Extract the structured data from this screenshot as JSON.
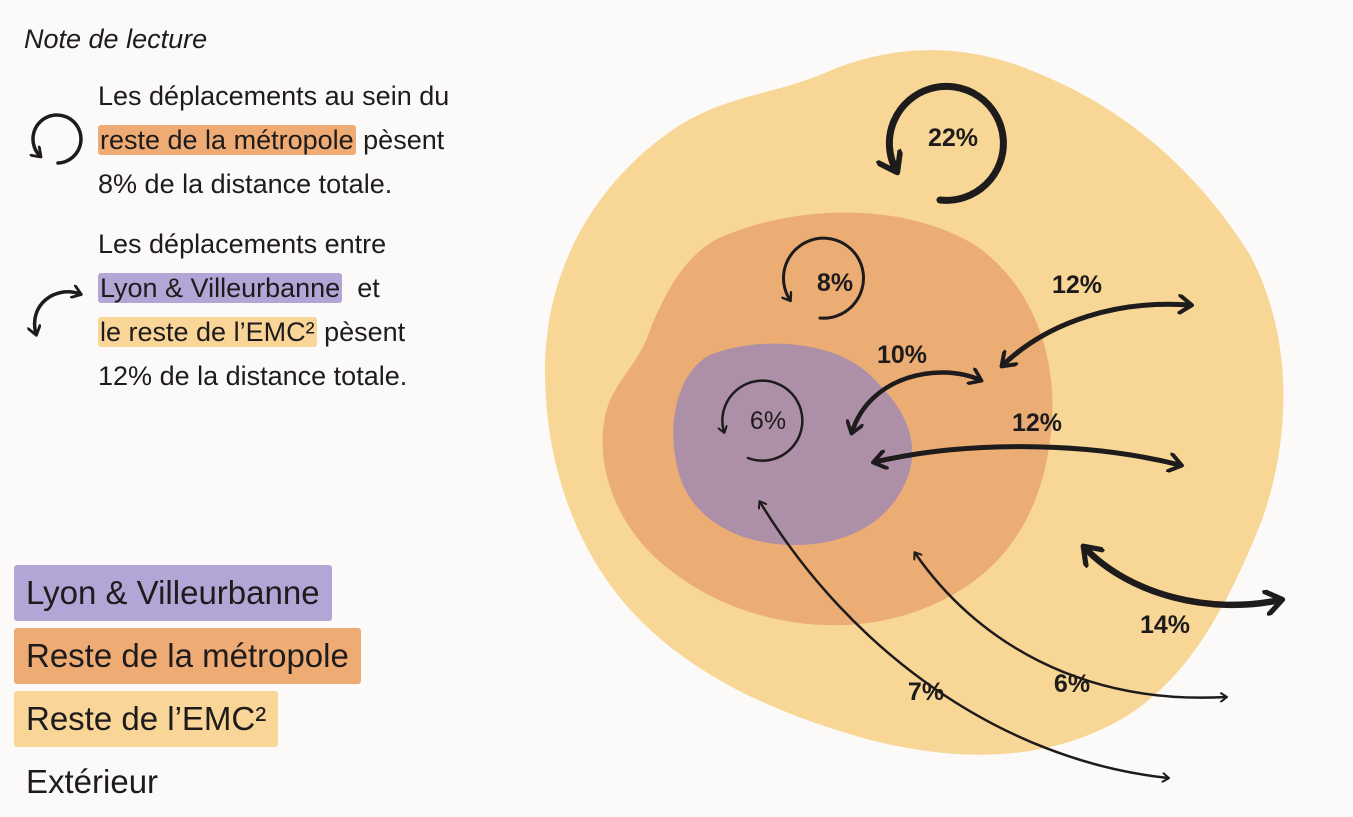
{
  "note": {
    "title": "Note de lecture",
    "loop_text": [
      "Les déplacements au sein du",
      "reste de la métropole",
      "pèsent",
      "8%",
      "de la distance totale."
    ],
    "flow_text": [
      "Les déplacements entre",
      "Lyon & Villeurbanne",
      "et",
      "le reste de l’EMC²",
      "pèsent",
      "12%",
      "de la distance totale."
    ]
  },
  "legend": [
    {
      "label": "Lyon & Villeurbanne",
      "color": "#b3a5d6"
    },
    {
      "label": "Reste de la métropole",
      "color": "#eeac74"
    },
    {
      "label": "Reste de l’EMC²",
      "color": "#f9d697"
    },
    {
      "label": "Extérieur",
      "color": "#fcfaf8"
    }
  ],
  "zones": {
    "outer_color": "#f8d695",
    "middle_color": "#ebad74",
    "inner_color": "#ad90a8"
  },
  "flows": {
    "emc_internal": "22%",
    "metro_internal": "8%",
    "lyon_internal": "6%",
    "lyon_metro": "10%",
    "metro_emc": "12%",
    "lyon_emc": "12%",
    "emc_ext": "14%",
    "metro_ext": "6%",
    "lyon_ext": "7%"
  }
}
